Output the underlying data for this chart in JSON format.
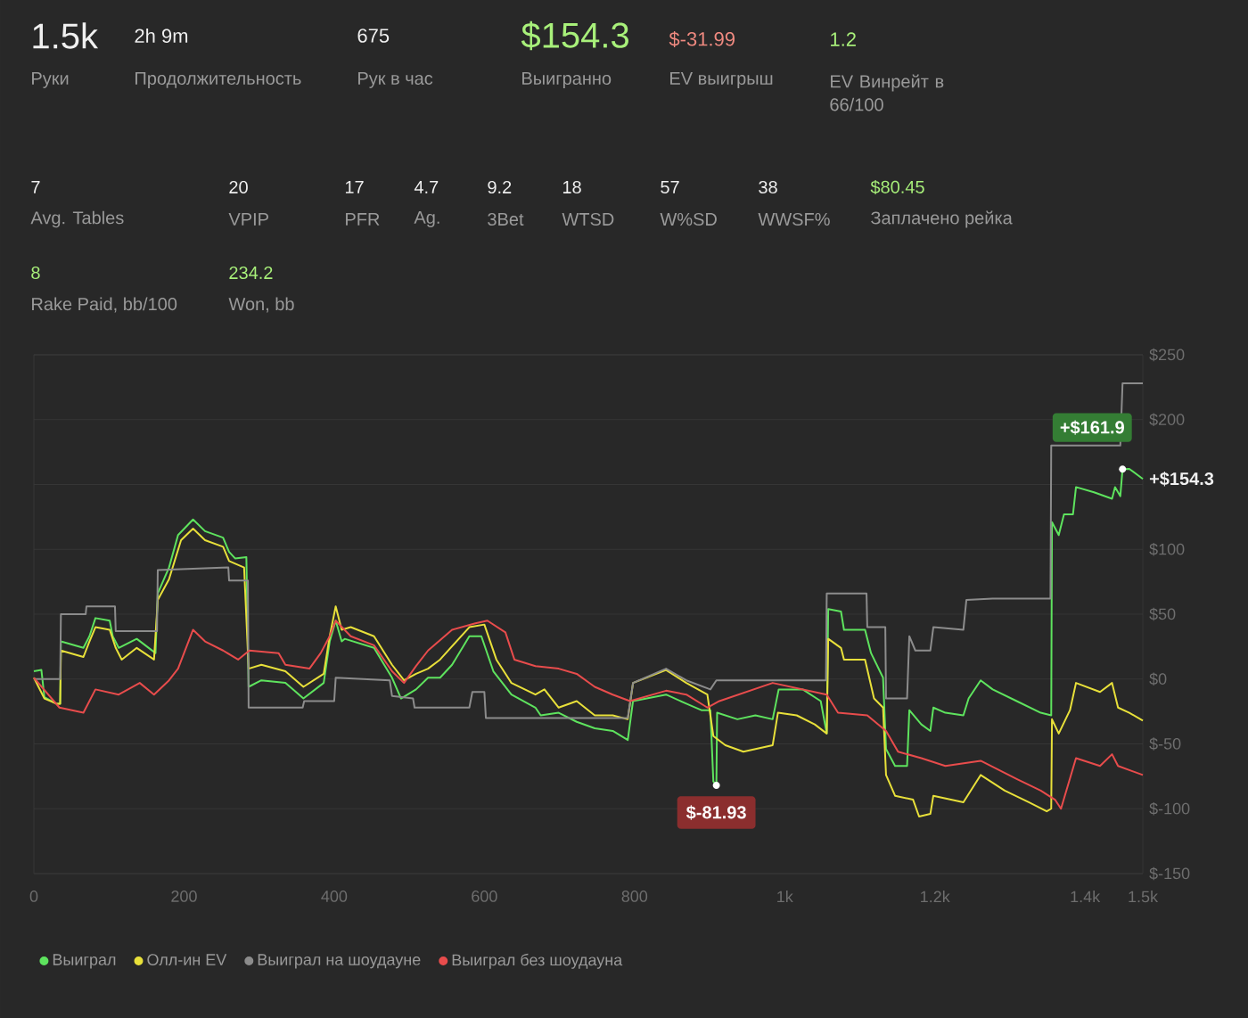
{
  "chart_data": {
    "type": "line",
    "annotations": [
      "1.5k",
      "Руки",
      "2h 9m",
      "Продолжительность",
      "675",
      "Рук в час",
      "$154.3",
      "Выигранно",
      "$-31.99",
      "EV выигрыш",
      "1.2",
      "EV Винрейт в 66/100",
      "7",
      "Avg. Tables",
      "20",
      "VPIP",
      "17",
      "PFR",
      "4.7",
      "Ag.",
      "9.2",
      "3Bet",
      "18",
      "WTSD",
      "57",
      "W%SD",
      "38",
      "WWSF%",
      "$80.45",
      "Заплачено рейка",
      "8",
      "Rake Paid, bb/100",
      "234.2",
      "Won, bb",
      {
        "text": "$-81.93",
        "x": 909,
        "y": -81.93
      },
      {
        "text": "+$161.9",
        "x": 1450,
        "y": 161.9
      },
      {
        "text": "+$154.3",
        "x": 1477,
        "y": 154.3
      }
    ],
    "xlim": [
      0,
      1477
    ],
    "ylim": [
      -150,
      250
    ],
    "xticks": [
      0,
      200,
      400,
      600,
      800,
      {
        "value": 1000,
        "label": "1k"
      },
      {
        "value": 1200,
        "label": "1.2k"
      },
      {
        "value": 1400,
        "label": "1.4k"
      },
      {
        "value": 1477,
        "label": "1.5k"
      }
    ],
    "yticks": [
      {
        "value": -150,
        "label": "$-150"
      },
      {
        "value": -100,
        "label": "$-100"
      },
      {
        "value": -50,
        "label": "$-50"
      },
      {
        "value": 0,
        "label": "$0"
      },
      {
        "value": 50,
        "label": "$50"
      },
      {
        "value": 100,
        "label": "$100"
      },
      {
        "value": 150,
        "label": null
      },
      {
        "value": 200,
        "label": "$200"
      },
      {
        "value": 250,
        "label": "$250"
      }
    ],
    "grid": "y",
    "legend": "bottom",
    "marker": "none",
    "line_style": "solid",
    "series": [
      {
        "name": "Выиграл",
        "color": "#5ee35e",
        "x": [
          0,
          10,
          14,
          30,
          35,
          36,
          66,
          74,
          82,
          101,
          105,
          113,
          137,
          153,
          162,
          165,
          180,
          192,
          212,
          228,
          252,
          260,
          268,
          283,
          286,
          303,
          335,
          359,
          386,
          394,
          402,
          410,
          414,
          453,
          477,
          489,
          509,
          525,
          541,
          557,
          580,
          596,
          612,
          636,
          668,
          675,
          699,
          723,
          747,
          771,
          791,
          798,
          842,
          869,
          889,
          901,
          905,
          909,
          910,
          937,
          961,
          984,
          992,
          1024,
          1048,
          1056,
          1058,
          1075,
          1079,
          1107,
          1115,
          1131,
          1135,
          1147,
          1163,
          1166,
          1182,
          1194,
          1198,
          1214,
          1238,
          1245,
          1261,
          1277,
          1309,
          1341,
          1355,
          1356,
          1365,
          1372,
          1384,
          1388,
          1412,
          1436,
          1440,
          1447,
          1450,
          1459,
          1477
        ],
        "values": [
          6,
          7,
          -14,
          -19,
          -19,
          29,
          24,
          33,
          47,
          45,
          33,
          24,
          31,
          24,
          20,
          66,
          86,
          111,
          123,
          114,
          109,
          98,
          93,
          94,
          -6,
          -1,
          -3,
          -15,
          -3,
          29,
          45,
          29,
          31,
          24,
          1,
          -15,
          -8,
          1,
          1,
          11,
          33,
          33,
          6,
          -12,
          -22,
          -28,
          -26,
          -33,
          -38,
          -40,
          -47,
          -17,
          -12,
          -19,
          -24,
          -24,
          -79,
          -81.93,
          -26,
          -31,
          -28,
          -31,
          -8,
          -8,
          -17,
          -42,
          54,
          52,
          38,
          38,
          20,
          1,
          -54,
          -67,
          -67,
          -24,
          -35,
          -40,
          -22,
          -26,
          -28,
          -15,
          -1,
          -8,
          -17,
          -26,
          -28,
          121,
          111,
          127,
          127,
          148,
          144,
          139,
          148,
          141,
          161.9,
          162,
          154.3
        ]
      },
      {
        "name": "Олл-ин EV",
        "color": "#e8e03a",
        "x": [
          0,
          14,
          30,
          35,
          36,
          66,
          74,
          82,
          101,
          109,
          117,
          137,
          160,
          165,
          180,
          196,
          212,
          228,
          252,
          260,
          280,
          286,
          303,
          335,
          359,
          386,
          394,
          402,
          410,
          422,
          453,
          477,
          493,
          509,
          525,
          541,
          580,
          600,
          616,
          636,
          668,
          680,
          699,
          723,
          747,
          771,
          791,
          798,
          842,
          869,
          897,
          905,
          921,
          945,
          984,
          991,
          1016,
          1040,
          1056,
          1058,
          1075,
          1079,
          1107,
          1119,
          1131,
          1135,
          1147,
          1171,
          1179,
          1194,
          1198,
          1238,
          1261,
          1293,
          1325,
          1349,
          1355,
          1356,
          1365,
          1380,
          1388,
          1420,
          1436,
          1444,
          1459,
          1477
        ],
        "values": [
          1,
          -15,
          -19,
          -19,
          22,
          17,
          29,
          40,
          38,
          24,
          15,
          24,
          15,
          61,
          77,
          107,
          116,
          107,
          102,
          91,
          86,
          8,
          11,
          6,
          -6,
          4,
          33,
          56,
          38,
          40,
          33,
          11,
          -1,
          4,
          8,
          15,
          40,
          42,
          15,
          -3,
          -12,
          -8,
          -22,
          -17,
          -28,
          -28,
          -31,
          -3,
          7,
          -3,
          -12,
          -44,
          -51,
          -56,
          -51,
          -26,
          -28,
          -35,
          -42,
          31,
          24,
          15,
          15,
          -15,
          -22,
          -74,
          -90,
          -93,
          -106,
          -104,
          -90,
          -95,
          -74,
          -86,
          -95,
          -102,
          -100,
          -31,
          -42,
          -24,
          -3,
          -10,
          -3,
          -22,
          -26,
          -32
        ]
      },
      {
        "name": "Выиграл на шоудауне",
        "color": "#8c8c8c",
        "x": [
          0,
          35,
          36,
          69,
          70,
          108,
          109,
          164,
          165,
          259,
          260,
          285,
          286,
          358,
          360,
          400,
          402,
          474,
          477,
          505,
          507,
          580,
          584,
          600,
          602,
          791,
          798,
          842,
          869,
          901,
          909,
          1055,
          1056,
          1109,
          1110,
          1134,
          1135,
          1163,
          1166,
          1174,
          1194,
          1198,
          1238,
          1242,
          1277,
          1354,
          1355,
          1447,
          1450,
          1477
        ],
        "values": [
          0,
          0,
          50,
          50,
          56,
          56,
          37,
          37,
          84,
          86,
          76,
          76,
          -22,
          -22,
          -17,
          -17,
          1,
          -1,
          -13,
          -15,
          -22,
          -22,
          -10,
          -10,
          -30,
          -30,
          -3,
          8,
          -1,
          -8,
          -1,
          -1,
          66,
          66,
          40,
          40,
          -15,
          -15,
          33,
          22,
          22,
          40,
          38,
          61,
          62,
          62,
          180,
          180,
          228,
          228
        ]
      },
      {
        "name": "Выиграл без шоудауна",
        "color": "#e84c4c",
        "x": [
          0,
          34,
          66,
          82,
          113,
          141,
          160,
          180,
          192,
          212,
          228,
          252,
          272,
          287,
          326,
          335,
          367,
          382,
          394,
          402,
          422,
          453,
          477,
          493,
          509,
          525,
          557,
          588,
          604,
          628,
          640,
          668,
          699,
          723,
          747,
          771,
          794,
          842,
          869,
          897,
          913,
          984,
          1056,
          1071,
          1110,
          1135,
          1151,
          1182,
          1214,
          1261,
          1309,
          1341,
          1360,
          1368,
          1388,
          1420,
          1436,
          1444,
          1477
        ],
        "values": [
          1,
          -22,
          -26,
          -8,
          -12,
          -3,
          -12,
          -1,
          8,
          38,
          29,
          22,
          15,
          22,
          20,
          11,
          8,
          20,
          33,
          45,
          33,
          26,
          6,
          -3,
          10,
          22,
          38,
          43,
          45,
          36,
          15,
          10,
          8,
          4,
          -6,
          -12,
          -17,
          -9,
          -12,
          -22,
          -17,
          -3,
          -12,
          -26,
          -28,
          -40,
          -56,
          -61,
          -67,
          -63,
          -77,
          -86,
          -93,
          -100,
          -61,
          -67,
          -58,
          -67,
          -74
        ]
      }
    ]
  }
}
